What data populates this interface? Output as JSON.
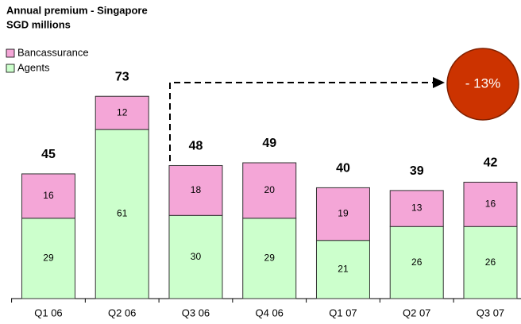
{
  "chart_data": {
    "type": "stacked_bar",
    "title": "Annual premium - Singapore",
    "subtitle": "SGD millions",
    "categories": [
      "Q1 06",
      "Q2 06",
      "Q3 06",
      "Q4 06",
      "Q1 07",
      "Q2 07",
      "Q3 07"
    ],
    "series": [
      {
        "name": "Agents",
        "color": "#ccffcc",
        "values": [
          29,
          61,
          30,
          29,
          21,
          26,
          26
        ]
      },
      {
        "name": "Bancassurance",
        "color": "#f4a6d7",
        "values": [
          16,
          12,
          18,
          20,
          19,
          13,
          16
        ]
      }
    ],
    "totals": [
      45,
      73,
      48,
      49,
      40,
      39,
      42
    ],
    "annotation": "- 13%",
    "annotation_color": "#cc3300"
  }
}
